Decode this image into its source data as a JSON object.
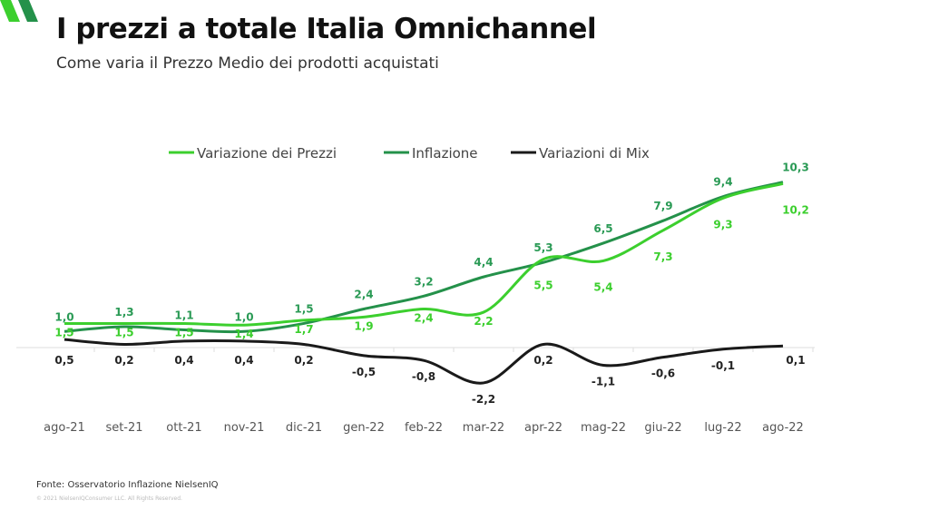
{
  "title": "I prezzi a totale Italia Omnichannel",
  "subtitle": "Come varia il Prezzo Medio dei prodotti acquistati",
  "source": "Fonte: Osservatorio Inflazione NielsenIQ",
  "copyright": "© 2021 NielsenIQConsumer LLC. All Rights Reserved.",
  "colors": {
    "prezzi": "#3ccf2e",
    "inflazione": "#24914a",
    "mix": "#1a1a1a"
  },
  "chart_data": {
    "type": "line",
    "title": "",
    "categories": [
      "ago-21",
      "set-21",
      "ott-21",
      "nov-21",
      "dic-21",
      "gen-22",
      "feb-22",
      "mar-22",
      "apr-22",
      "mag-22",
      "giu-22",
      "lug-22",
      "ago-22"
    ],
    "series": [
      {
        "name": "Variazione dei Prezzi",
        "values": [
          1.5,
          1.5,
          1.5,
          1.4,
          1.7,
          1.9,
          2.4,
          2.2,
          5.5,
          5.4,
          7.3,
          9.3,
          10.2
        ],
        "labels": [
          "1,5",
          "1,5",
          "1,5",
          "1,4",
          "1,7",
          "1,9",
          "2,4",
          "2,2",
          "5,5",
          "5,4",
          "7,3",
          "9,3",
          "10,2"
        ]
      },
      {
        "name": "Inflazione",
        "values": [
          1.0,
          1.3,
          1.1,
          1.0,
          1.5,
          2.4,
          3.2,
          4.4,
          5.3,
          6.5,
          7.9,
          9.4,
          10.3
        ],
        "labels": [
          "1,0",
          "1,3",
          "1,1",
          "1,0",
          "1,5",
          "2,4",
          "3,2",
          "4,4",
          "5,3",
          "6,5",
          "7,9",
          "9,4",
          "10,3"
        ]
      },
      {
        "name": "Variazioni di Mix",
        "values": [
          0.5,
          0.2,
          0.4,
          0.4,
          0.2,
          -0.5,
          -0.8,
          -2.2,
          0.2,
          -1.1,
          -0.6,
          -0.1,
          0.1
        ],
        "labels": [
          "0,5",
          "0,2",
          "0,4",
          "0,4",
          "0,2",
          "-0,5",
          "-0,8",
          "-2,2",
          "0,2",
          "-1,1",
          "-0,6",
          "-0,1",
          "0,1"
        ]
      }
    ],
    "legend": "top-center",
    "grid": false
  }
}
